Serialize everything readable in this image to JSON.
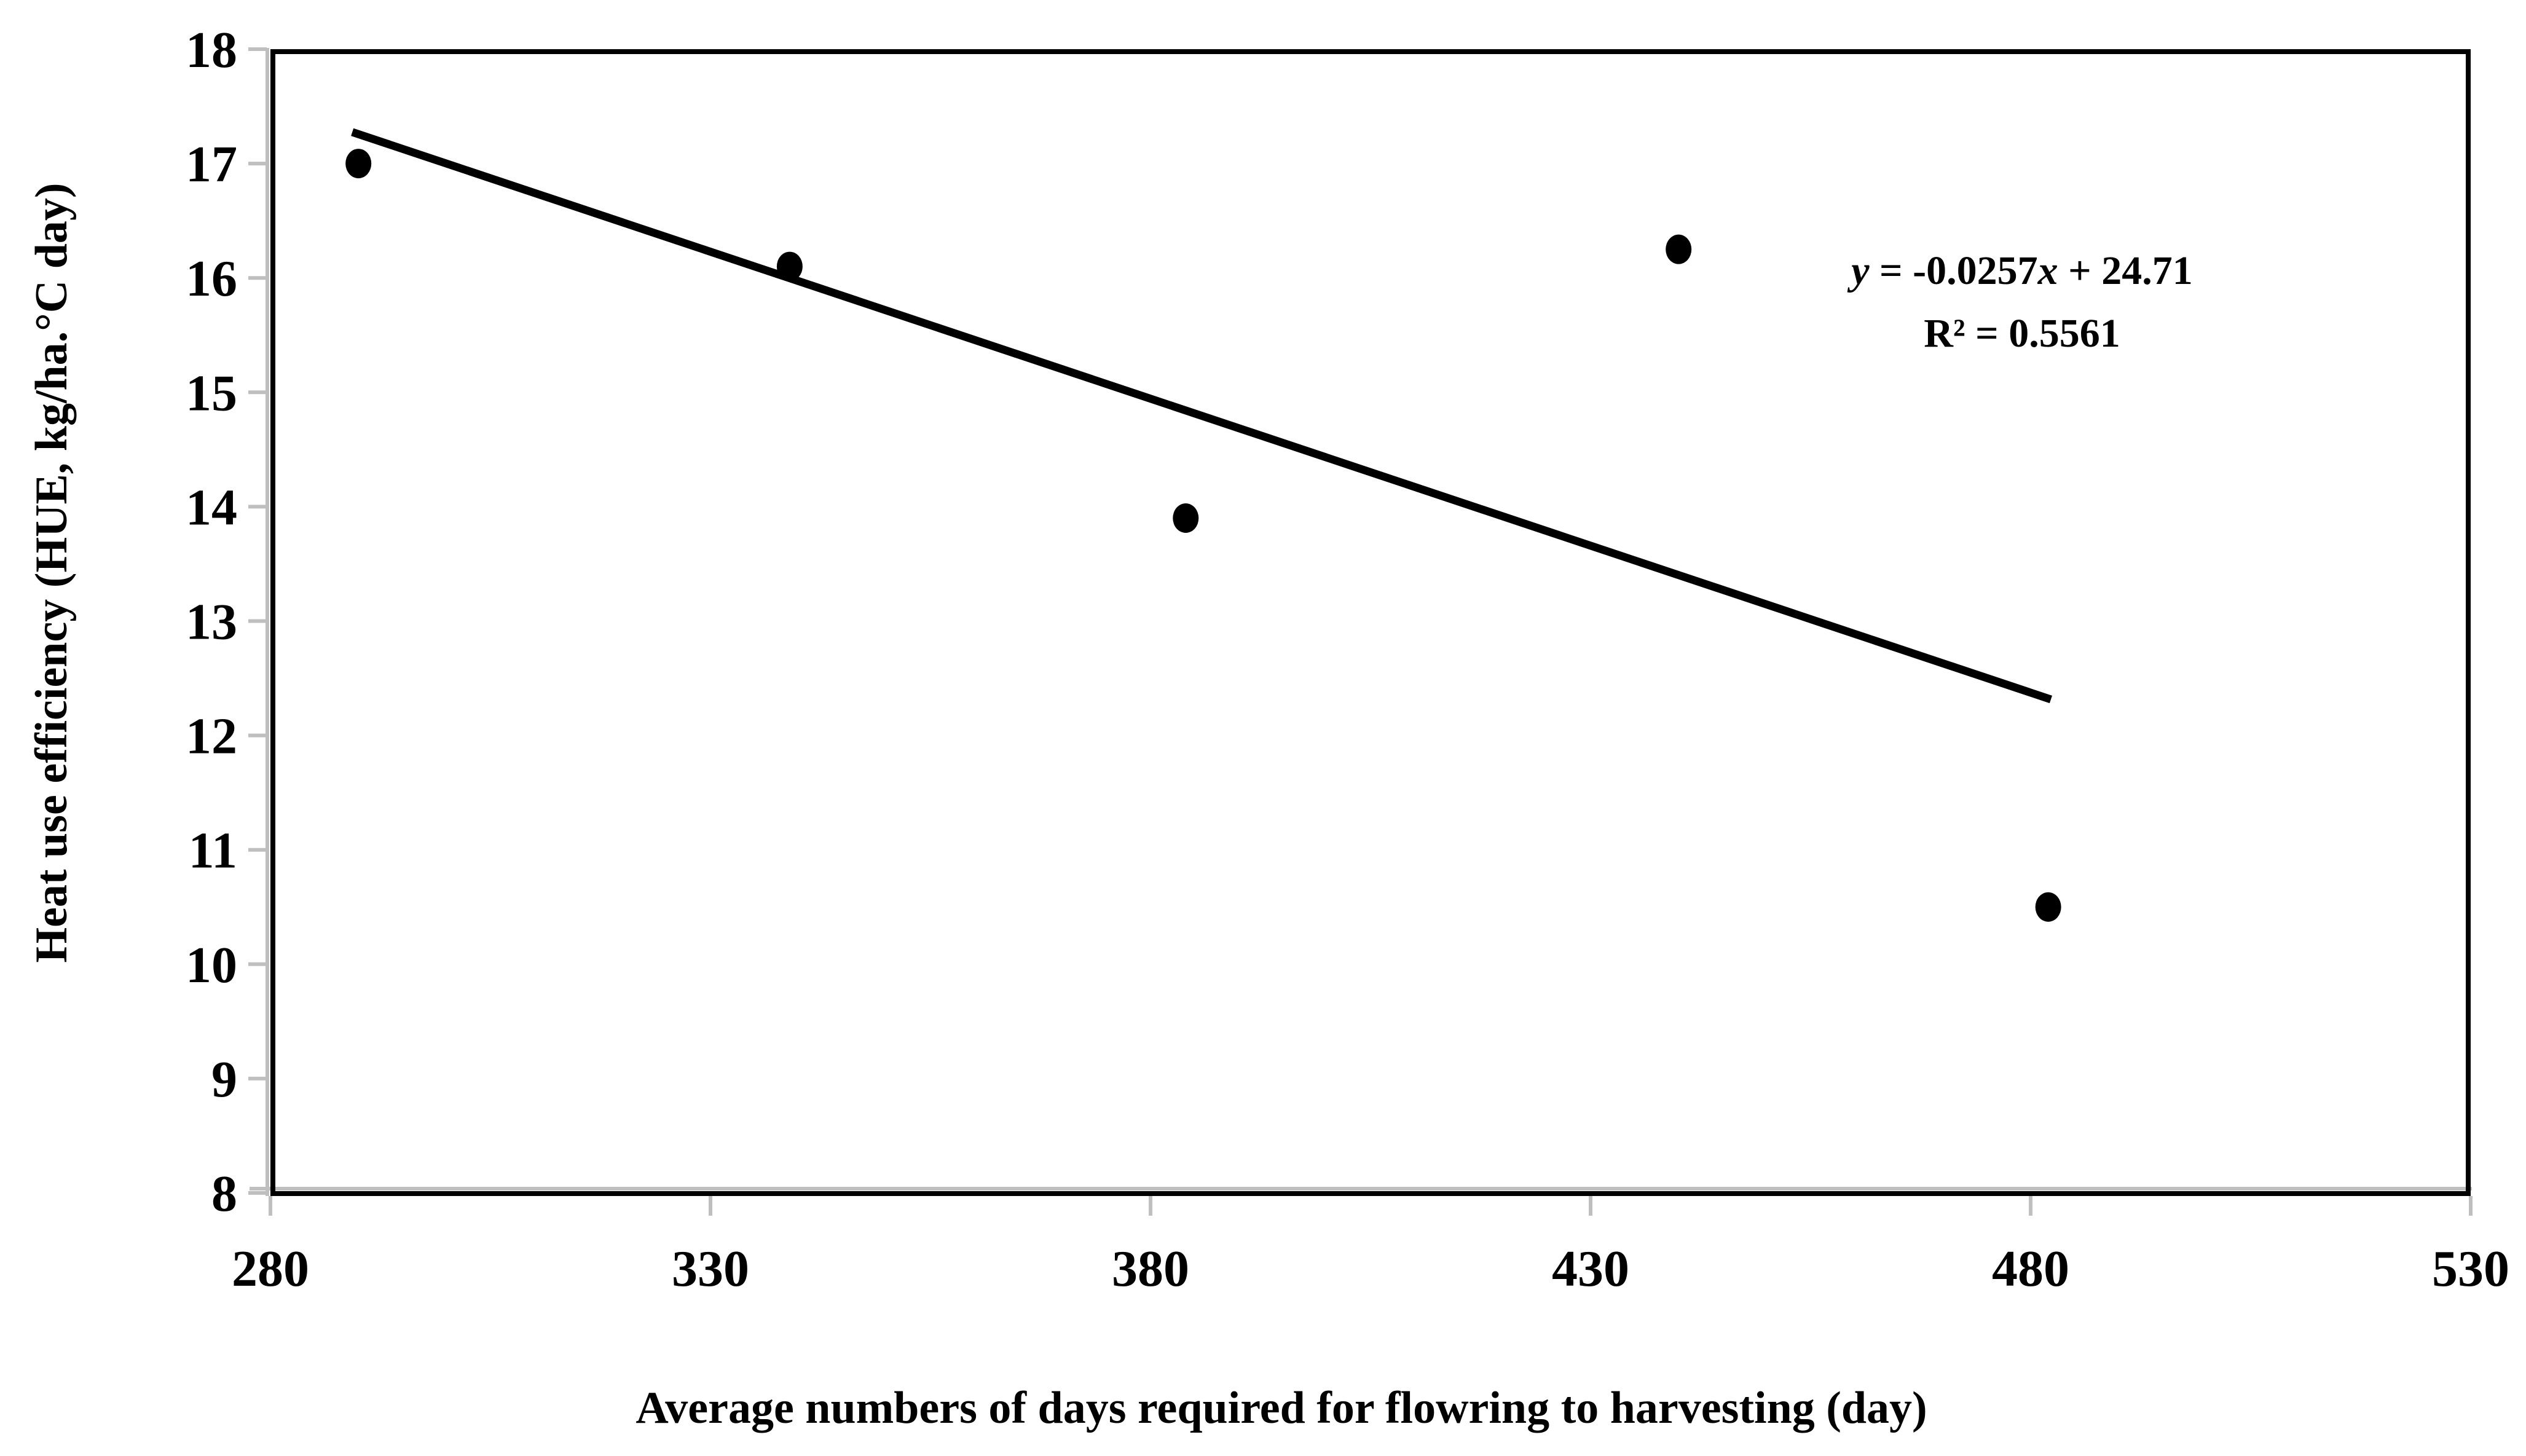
{
  "chart_data": {
    "type": "scatter",
    "title": "",
    "xlabel": "Average numbers of days required for flowring to harvesting  (day)",
    "ylabel": "Heat use efficiency (HUE, kg/ha.°C day)",
    "xlim": [
      280,
      530
    ],
    "ylim": [
      8,
      18
    ],
    "x_ticks": [
      280,
      330,
      380,
      430,
      480,
      530
    ],
    "y_ticks": [
      8,
      9,
      10,
      11,
      12,
      13,
      14,
      15,
      16,
      17,
      18
    ],
    "grid": false,
    "legend": null,
    "points": [
      {
        "x": 290,
        "y": 17.0
      },
      {
        "x": 339,
        "y": 16.1
      },
      {
        "x": 384,
        "y": 13.9
      },
      {
        "x": 440,
        "y": 16.25
      },
      {
        "x": 482,
        "y": 10.5
      }
    ],
    "trendline": {
      "slope": -0.0257,
      "intercept": 24.71,
      "x_start": 289.3,
      "x_end": 482.3
    },
    "equation_parts": {
      "lead": "y",
      "mid": " = -0.0257",
      "var": "x",
      "tail": " + 24.71"
    },
    "r_squared_label": "R² = 0.5561",
    "colors": {
      "marker": "#000000",
      "trendline": "#000000",
      "frame": "#000000",
      "axis_line": "#BFBFBF",
      "text": "#000000",
      "background": "#FFFFFF"
    }
  }
}
